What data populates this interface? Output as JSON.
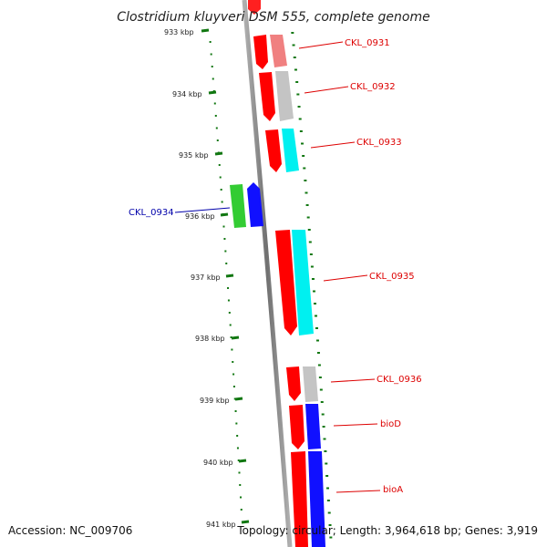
{
  "title": "Clostridium kluyveri DSM 555, complete genome",
  "accession": "Accession: NC_009706",
  "summary": "Topology: circular; Length: 3,964,618 bp; Genes: 3,919",
  "ticks": [
    "933 kbp",
    "934 kbp",
    "935 kbp",
    "936 kbp",
    "937 kbp",
    "938 kbp",
    "939 kbp",
    "940 kbp",
    "941 kbp"
  ],
  "genes": [
    {
      "label": "CKL_0931",
      "color": "#dd0000"
    },
    {
      "label": "CKL_0932",
      "color": "#dd0000"
    },
    {
      "label": "CKL_0933",
      "color": "#dd0000"
    },
    {
      "label": "CKL_0934",
      "color": "#0000aa"
    },
    {
      "label": "CKL_0935",
      "color": "#dd0000"
    },
    {
      "label": "CKL_0936",
      "color": "#dd0000"
    },
    {
      "label": "bioD",
      "color": "#dd0000"
    },
    {
      "label": "bioA",
      "color": "#dd0000"
    }
  ],
  "colors": {
    "forward_cds": "#ff0000",
    "reverse_cds": "#1010ff",
    "green_feature": "#33cc33",
    "backbone": "#888888",
    "ticks": "#117711",
    "cyan_feature": "#00f0f0",
    "grey_feature": "#c0c0c0",
    "salmon_feature": "#f08080"
  }
}
